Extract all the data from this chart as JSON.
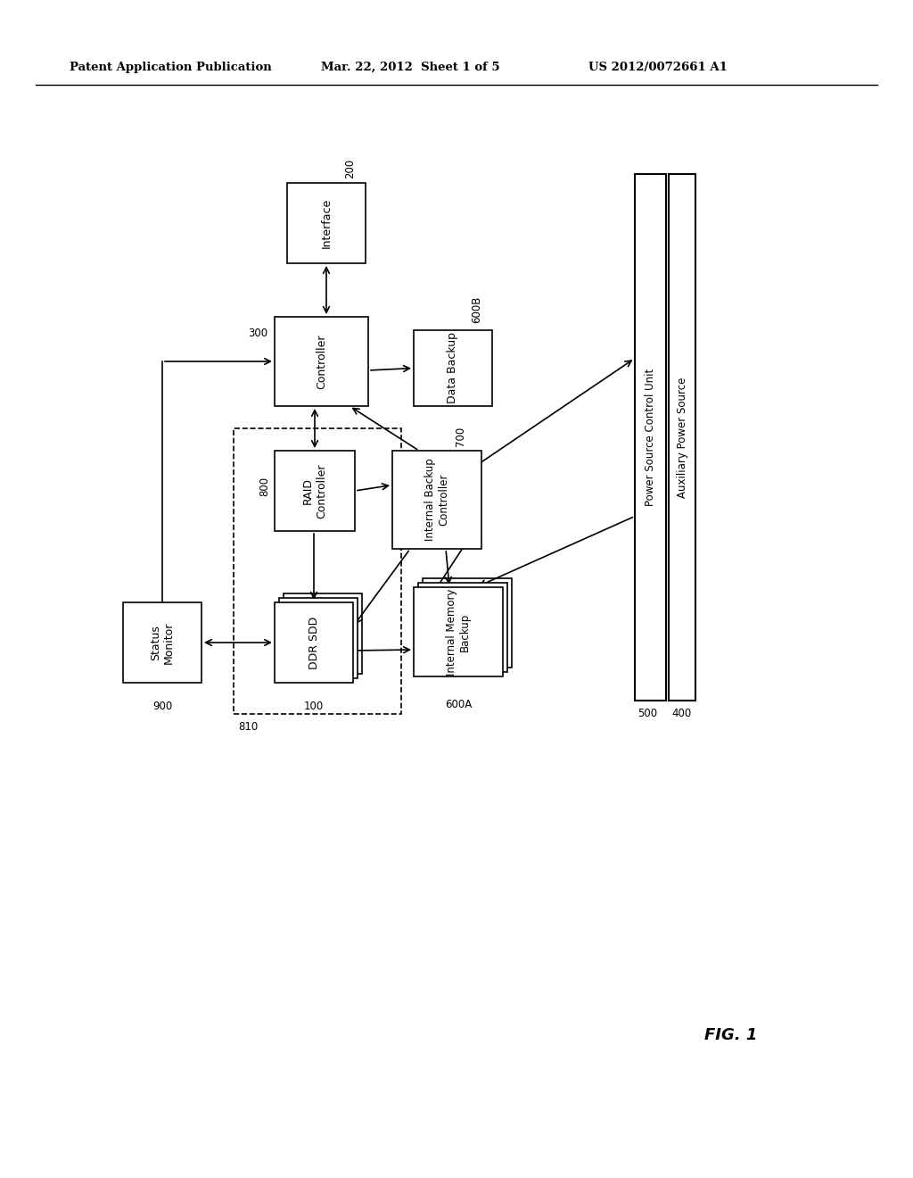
{
  "header_left": "Patent Application Publication",
  "header_mid": "Mar. 22, 2012  Sheet 1 of 5",
  "header_right": "US 2012/0072661 A1",
  "fig_label": "FIG. 1",
  "background": "#ffffff"
}
